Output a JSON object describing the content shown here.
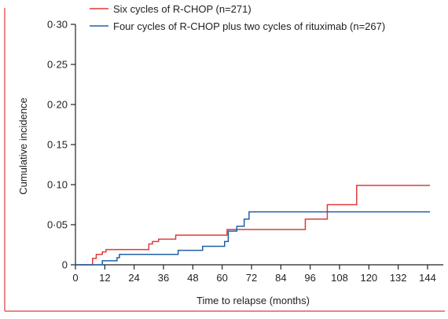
{
  "chart_data": {
    "type": "line",
    "step": true,
    "xlabel": "Time to relapse (months)",
    "ylabel": "Cumulative incidence",
    "xlim": [
      0,
      144
    ],
    "ylim": [
      0,
      0.3
    ],
    "xticks": [
      0,
      12,
      24,
      36,
      48,
      60,
      72,
      84,
      96,
      108,
      120,
      132,
      144
    ],
    "x_tick_labels": [
      "0",
      "12",
      "24",
      "36",
      "48",
      "60",
      "72",
      "84",
      "96",
      "108",
      "120",
      "132",
      "144"
    ],
    "yticks": [
      0,
      0.05,
      0.1,
      0.15,
      0.2,
      0.25,
      0.3
    ],
    "y_tick_labels": [
      "0",
      "0·05",
      "0·10",
      "0·15",
      "0·20",
      "0·25",
      "0·30"
    ],
    "legend_position": "top-left",
    "grid": false,
    "series": [
      {
        "name": "Six cycles of R-CHOP (n=271)",
        "color": "#e03a3a",
        "points": [
          [
            0,
            0
          ],
          [
            7,
            0
          ],
          [
            7,
            0.008
          ],
          [
            8.5,
            0.008
          ],
          [
            8.5,
            0.013
          ],
          [
            11,
            0.013
          ],
          [
            11,
            0.016
          ],
          [
            12.5,
            0.016
          ],
          [
            12.5,
            0.019
          ],
          [
            30,
            0.019
          ],
          [
            30,
            0.026
          ],
          [
            31.5,
            0.026
          ],
          [
            31.5,
            0.029
          ],
          [
            34,
            0.029
          ],
          [
            34,
            0.032
          ],
          [
            41,
            0.032
          ],
          [
            41,
            0.037
          ],
          [
            62,
            0.037
          ],
          [
            62,
            0.044
          ],
          [
            94,
            0.044
          ],
          [
            94,
            0.057
          ],
          [
            103,
            0.057
          ],
          [
            103,
            0.075
          ],
          [
            115,
            0.075
          ],
          [
            115,
            0.099
          ],
          [
            145,
            0.099
          ]
        ]
      },
      {
        "name": "Four cycles of R-CHOP plus two cycles of rituximab (n=267)",
        "color": "#2060a8",
        "points": [
          [
            0,
            0
          ],
          [
            11,
            0
          ],
          [
            11,
            0.005
          ],
          [
            17,
            0.005
          ],
          [
            17,
            0.009
          ],
          [
            18,
            0.009
          ],
          [
            18,
            0.013
          ],
          [
            42,
            0.013
          ],
          [
            42,
            0.018
          ],
          [
            52,
            0.018
          ],
          [
            52,
            0.023
          ],
          [
            61,
            0.023
          ],
          [
            61,
            0.029
          ],
          [
            62.5,
            0.029
          ],
          [
            62.5,
            0.042
          ],
          [
            66,
            0.042
          ],
          [
            66,
            0.048
          ],
          [
            69,
            0.048
          ],
          [
            69,
            0.057
          ],
          [
            71,
            0.057
          ],
          [
            71,
            0.066
          ],
          [
            145,
            0.066
          ]
        ]
      }
    ]
  }
}
